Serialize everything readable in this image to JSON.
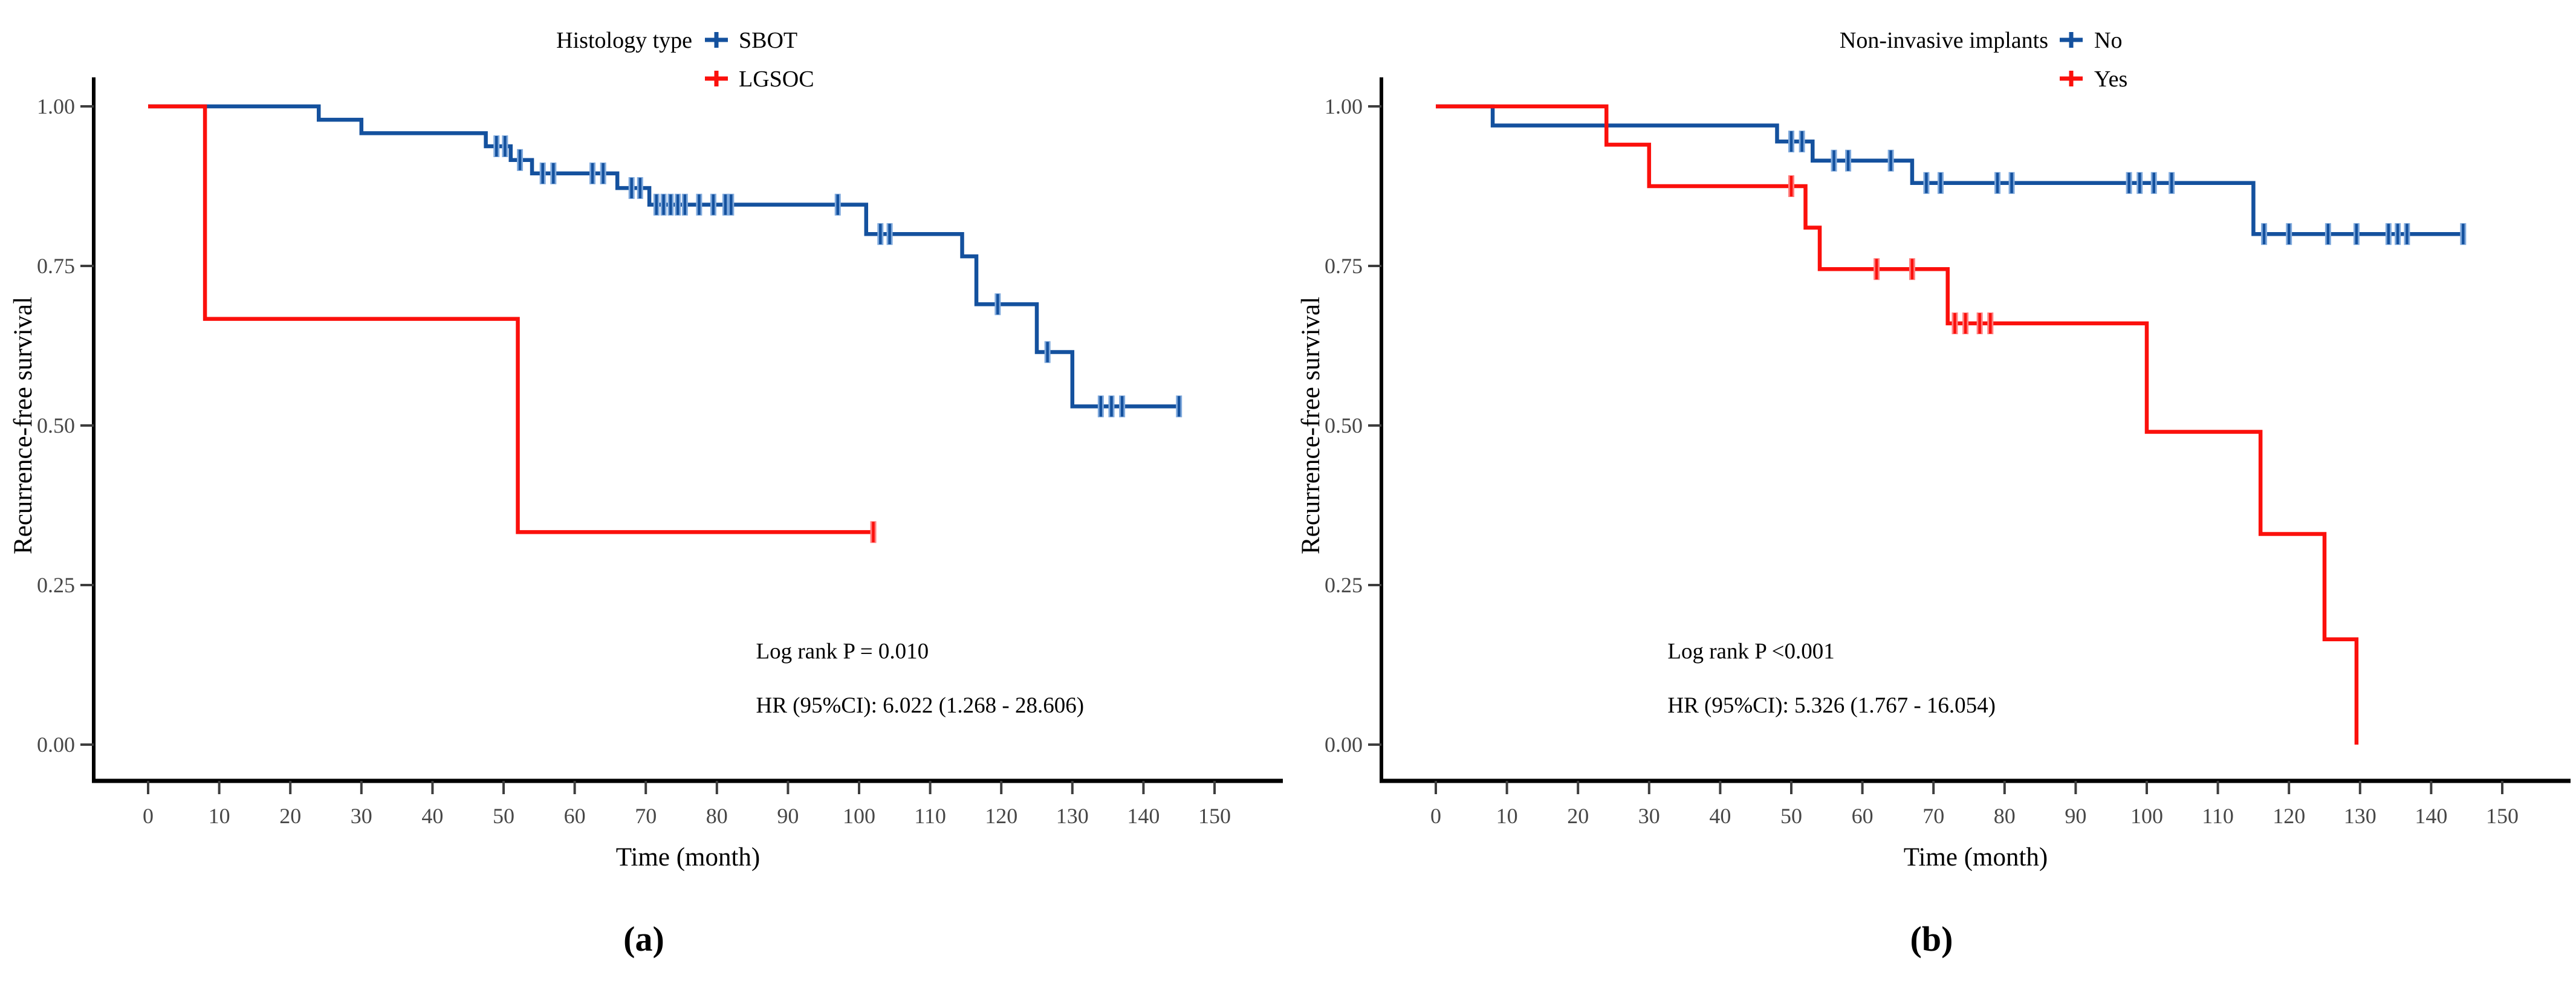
{
  "figure": {
    "panel_a_label": "(a)",
    "panel_b_label": "(b)"
  },
  "colors": {
    "blue": "#14519E",
    "red": "#FB100C",
    "blue_censor_halo": "#7FA9DC",
    "red_censor_halo": "#FF8080",
    "axis": "#000000",
    "tick": "#3d3d3d"
  },
  "chart_data": [
    {
      "id": "a",
      "type": "line",
      "subtype": "kaplan-meier-step",
      "legend_title": "Histology type",
      "xlabel": "Time (month)",
      "ylabel": "Recurrence-free survival",
      "xlim": [
        0,
        150
      ],
      "ylim": [
        0,
        1.0
      ],
      "x_ticks": [
        0,
        10,
        20,
        30,
        40,
        50,
        60,
        70,
        80,
        90,
        100,
        110,
        120,
        130,
        140,
        150
      ],
      "y_ticks": [
        {
          "v": 0.0,
          "label": "0.00"
        },
        {
          "v": 0.25,
          "label": "0.25"
        },
        {
          "v": 0.5,
          "label": "0.50"
        },
        {
          "v": 0.75,
          "label": "0.75"
        },
        {
          "v": 1.0,
          "label": "1.00"
        }
      ],
      "grid": false,
      "legend_position": "top",
      "legend_layout": {
        "title_end_x": 1145,
        "marker_x": 1185,
        "label_x": 1222
      },
      "annotation": {
        "lines": [
          "Log rank P = 0.010",
          "HR (95%CI): 6.022 (1.268 - 28.606)"
        ],
        "x_month": 85.5,
        "y_surv": [
          0.135,
          0.05
        ]
      },
      "series": [
        {
          "name": "SBOT",
          "color_key": "blue",
          "steps": [
            [
              0,
              1.0
            ],
            [
              24,
              1.0
            ],
            [
              24,
              0.979
            ],
            [
              30,
              0.979
            ],
            [
              30,
              0.958
            ],
            [
              47.5,
              0.958
            ],
            [
              47.5,
              0.9375
            ],
            [
              51,
              0.9375
            ],
            [
              51,
              0.916
            ],
            [
              54,
              0.916
            ],
            [
              54,
              0.895
            ],
            [
              66,
              0.895
            ],
            [
              66,
              0.872
            ],
            [
              70.5,
              0.872
            ],
            [
              70.5,
              0.846
            ],
            [
              101,
              0.846
            ],
            [
              101,
              0.8
            ],
            [
              114.5,
              0.8
            ],
            [
              114.5,
              0.765
            ],
            [
              116.5,
              0.765
            ],
            [
              116.5,
              0.69
            ],
            [
              125,
              0.69
            ],
            [
              125,
              0.615
            ],
            [
              130,
              0.615
            ],
            [
              130,
              0.53
            ],
            [
              145,
              0.53
            ]
          ],
          "censors": [
            [
              49,
              0.9375
            ],
            [
              50.2,
              0.9375
            ],
            [
              52.3,
              0.916
            ],
            [
              55.5,
              0.895
            ],
            [
              57,
              0.895
            ],
            [
              62.5,
              0.895
            ],
            [
              64,
              0.895
            ],
            [
              68,
              0.872
            ],
            [
              69.2,
              0.872
            ],
            [
              71.5,
              0.846
            ],
            [
              72.5,
              0.846
            ],
            [
              73.5,
              0.846
            ],
            [
              74.5,
              0.846
            ],
            [
              75.5,
              0.846
            ],
            [
              77.5,
              0.846
            ],
            [
              79.5,
              0.846
            ],
            [
              81.2,
              0.846
            ],
            [
              82,
              0.846
            ],
            [
              97,
              0.846
            ],
            [
              103,
              0.8
            ],
            [
              104.3,
              0.8
            ],
            [
              119.5,
              0.69
            ],
            [
              126.5,
              0.615
            ],
            [
              134,
              0.53
            ],
            [
              135.5,
              0.53
            ],
            [
              137,
              0.53
            ],
            [
              145,
              0.53
            ]
          ]
        },
        {
          "name": "LGSOC",
          "color_key": "red",
          "steps": [
            [
              0,
              1.0
            ],
            [
              8,
              1.0
            ],
            [
              8,
              0.667
            ],
            [
              52,
              0.667
            ],
            [
              52,
              0.333
            ],
            [
              102,
              0.333
            ]
          ],
          "censors": [
            [
              102,
              0.333
            ]
          ]
        }
      ]
    },
    {
      "id": "b",
      "type": "line",
      "subtype": "kaplan-meier-step",
      "legend_title": "Non-invasive implants",
      "xlabel": "Time (month)",
      "ylabel": "Recurrence-free survival",
      "xlim": [
        0,
        150
      ],
      "ylim": [
        0,
        1.0
      ],
      "x_ticks": [
        0,
        10,
        20,
        30,
        40,
        50,
        60,
        70,
        80,
        90,
        100,
        110,
        120,
        130,
        140,
        150
      ],
      "y_ticks": [
        {
          "v": 0.0,
          "label": "0.00"
        },
        {
          "v": 0.25,
          "label": "0.25"
        },
        {
          "v": 0.5,
          "label": "0.50"
        },
        {
          "v": 0.75,
          "label": "0.75"
        },
        {
          "v": 1.0,
          "label": "1.00"
        }
      ],
      "grid": false,
      "legend_position": "top",
      "legend_layout": {
        "title_end_x": 1258,
        "marker_x": 1296,
        "label_x": 1334
      },
      "annotation": {
        "lines": [
          "Log rank P <0.001",
          "HR (95%CI): 5.326 (1.767 - 16.054)"
        ],
        "x_month": 32.6,
        "y_surv": [
          0.135,
          0.05
        ]
      },
      "series": [
        {
          "name": "No",
          "color_key": "blue",
          "steps": [
            [
              0,
              1.0
            ],
            [
              8,
              1.0
            ],
            [
              8,
              0.97
            ],
            [
              48,
              0.97
            ],
            [
              48,
              0.945
            ],
            [
              53,
              0.945
            ],
            [
              53,
              0.915
            ],
            [
              67,
              0.915
            ],
            [
              67,
              0.88
            ],
            [
              115,
              0.88
            ],
            [
              115,
              0.8
            ],
            [
              144.5,
              0.8
            ]
          ],
          "censors": [
            [
              50,
              0.945
            ],
            [
              51.5,
              0.945
            ],
            [
              56,
              0.915
            ],
            [
              58,
              0.915
            ],
            [
              64,
              0.915
            ],
            [
              69,
              0.88
            ],
            [
              71,
              0.88
            ],
            [
              79,
              0.88
            ],
            [
              81,
              0.88
            ],
            [
              97.5,
              0.88
            ],
            [
              99,
              0.88
            ],
            [
              101,
              0.88
            ],
            [
              103.5,
              0.88
            ],
            [
              116.5,
              0.8
            ],
            [
              120,
              0.8
            ],
            [
              125.5,
              0.8
            ],
            [
              129.5,
              0.8
            ],
            [
              134,
              0.8
            ],
            [
              135.3,
              0.8
            ],
            [
              136.6,
              0.8
            ],
            [
              144.5,
              0.8
            ]
          ]
        },
        {
          "name": "Yes",
          "color_key": "red",
          "steps": [
            [
              0,
              1.0
            ],
            [
              24,
              1.0
            ],
            [
              24,
              0.94
            ],
            [
              30,
              0.94
            ],
            [
              30,
              0.875
            ],
            [
              52,
              0.875
            ],
            [
              52,
              0.81
            ],
            [
              54,
              0.81
            ],
            [
              54,
              0.745
            ],
            [
              72,
              0.745
            ],
            [
              72,
              0.66
            ],
            [
              100,
              0.66
            ],
            [
              100,
              0.49
            ],
            [
              116,
              0.49
            ],
            [
              116,
              0.33
            ],
            [
              125,
              0.33
            ],
            [
              125,
              0.165
            ],
            [
              129.5,
              0.165
            ],
            [
              129.5,
              0.0
            ]
          ],
          "censors": [
            [
              50,
              0.875
            ],
            [
              62,
              0.745
            ],
            [
              67,
              0.745
            ],
            [
              73,
              0.66
            ],
            [
              74.5,
              0.66
            ],
            [
              76.5,
              0.66
            ],
            [
              78,
              0.66
            ]
          ]
        }
      ]
    }
  ]
}
